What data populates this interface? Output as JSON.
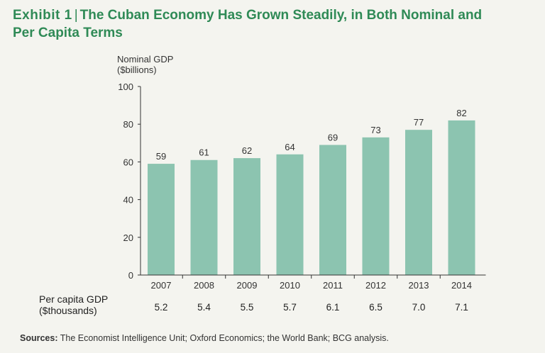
{
  "title": {
    "exhibit": "Exhibit 1",
    "separator": "|",
    "text_line1": "The Cuban Economy Has Grown Steadily, in Both Nominal and",
    "text_line2": "Per Capita Terms"
  },
  "colors": {
    "title": "#2f8a56",
    "bar": "#8cc4b0",
    "axis": "#333333",
    "text": "#333333"
  },
  "chart_data": {
    "type": "bar",
    "ylabel": "Nominal GDP",
    "ylabel_unit": "($billions)",
    "ylim": [
      0,
      100
    ],
    "yticks": [
      0,
      20,
      40,
      60,
      80,
      100
    ],
    "grid": false,
    "categories": [
      "2007",
      "2008",
      "2009",
      "2010",
      "2011",
      "2012",
      "2013",
      "2014"
    ],
    "values": [
      59,
      61,
      62,
      64,
      69,
      73,
      77,
      82
    ],
    "secondary": {
      "label": "Per capita GDP",
      "unit": "($thousands)",
      "values": [
        "5.2",
        "5.4",
        "5.5",
        "5.7",
        "6.1",
        "6.5",
        "7.0",
        "7.1"
      ]
    }
  },
  "source": {
    "label": "Sources:",
    "text": "The Economist Intelligence Unit; Oxford Economics; the World Bank; BCG analysis."
  }
}
